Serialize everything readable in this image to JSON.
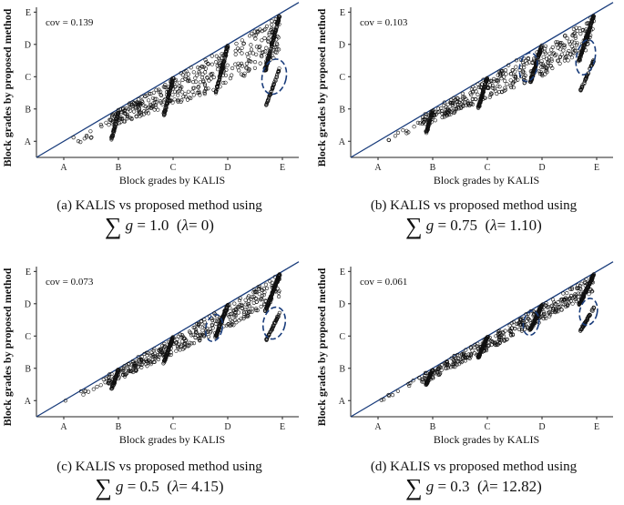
{
  "chart_data": [
    {
      "type": "scatter",
      "panel": "(a)",
      "caption": "KALIS vs proposed method using",
      "g": "1.0",
      "lambda": "0",
      "annotation": "cov = 0.139",
      "xlabel": "Block grades by KALIS",
      "ylabel": "Block grades by proposed method",
      "xticks": [
        "A",
        "B",
        "C",
        "D",
        "E"
      ],
      "yticks": [
        "A",
        "B",
        "C",
        "D",
        "E"
      ],
      "xlim": [
        0.5,
        5.3
      ],
      "ylim": [
        0.5,
        5.15
      ],
      "reference_line": {
        "from": [
          0.5,
          0.5
        ],
        "to": [
          5.3,
          5.3
        ]
      },
      "highlight_ellipses": [
        {
          "center": [
            4.85,
            3.0
          ],
          "rx": 0.22,
          "ry": 0.55
        }
      ],
      "skew": 1.0
    },
    {
      "type": "scatter",
      "panel": "(b)",
      "caption": "KALIS vs proposed method using",
      "g": "0.75",
      "lambda": "1.10",
      "annotation": "cov = 0.103",
      "xlabel": "Block grades by KALIS",
      "ylabel": "Block grades by proposed method",
      "xticks": [
        "A",
        "B",
        "C",
        "D",
        "E"
      ],
      "yticks": [
        "A",
        "B",
        "C",
        "D",
        "E"
      ],
      "xlim": [
        0.5,
        5.3
      ],
      "ylim": [
        0.5,
        5.15
      ],
      "reference_line": {
        "from": [
          0.5,
          0.5
        ],
        "to": [
          5.3,
          5.3
        ]
      },
      "highlight_ellipses": [
        {
          "center": [
            3.75,
            3.3
          ],
          "rx": 0.16,
          "ry": 0.45
        },
        {
          "center": [
            4.8,
            3.6
          ],
          "rx": 0.17,
          "ry": 0.55
        }
      ],
      "skew": 0.7
    },
    {
      "type": "scatter",
      "panel": "(c)",
      "caption": "KALIS vs proposed method using",
      "g": "0.5",
      "lambda": "4.15",
      "annotation": "cov = 0.073",
      "xlabel": "Block grades by KALIS",
      "ylabel": "Block grades by proposed method",
      "xticks": [
        "A",
        "B",
        "C",
        "D",
        "E"
      ],
      "yticks": [
        "A",
        "B",
        "C",
        "D",
        "E"
      ],
      "xlim": [
        0.5,
        5.3
      ],
      "ylim": [
        0.5,
        5.15
      ],
      "reference_line": {
        "from": [
          0.5,
          0.5
        ],
        "to": [
          5.3,
          5.3
        ]
      },
      "highlight_ellipses": [
        {
          "center": [
            3.75,
            3.25
          ],
          "rx": 0.15,
          "ry": 0.42
        },
        {
          "center": [
            4.85,
            3.4
          ],
          "rx": 0.2,
          "ry": 0.5
        }
      ],
      "skew": 0.5
    },
    {
      "type": "scatter",
      "panel": "(d)",
      "caption": "KALIS vs proposed method using",
      "g": "0.3",
      "lambda": "12.82",
      "annotation": "cov = 0.061",
      "xlabel": "Block grades by KALIS",
      "ylabel": "Block grades by proposed method",
      "xticks": [
        "A",
        "B",
        "C",
        "D",
        "E"
      ],
      "yticks": [
        "A",
        "B",
        "C",
        "D",
        "E"
      ],
      "xlim": [
        0.5,
        5.3
      ],
      "ylim": [
        0.5,
        5.15
      ],
      "reference_line": {
        "from": [
          0.5,
          0.5
        ],
        "to": [
          5.3,
          5.3
        ]
      },
      "highlight_ellipses": [
        {
          "center": [
            3.8,
            3.4
          ],
          "rx": 0.14,
          "ry": 0.38
        },
        {
          "center": [
            4.85,
            3.75
          ],
          "rx": 0.16,
          "ry": 0.42
        }
      ],
      "skew": 0.3
    }
  ],
  "colors": {
    "reference_line": "#1a3d7c",
    "markers": "#111111",
    "ellipse": "#1a3d7c"
  }
}
